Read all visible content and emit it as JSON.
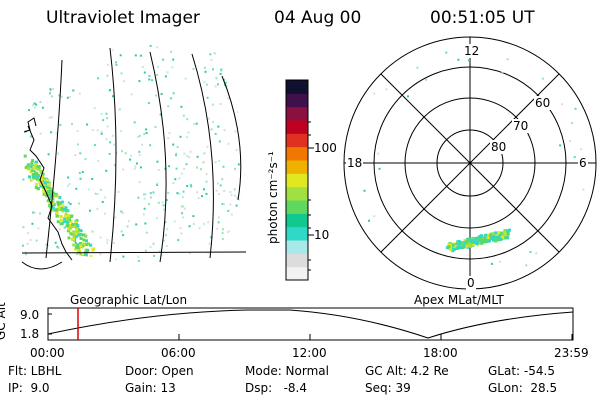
{
  "header": {
    "instrument": "Ultraviolet Imager",
    "date": "04 Aug 00",
    "time": "00:51:05 UT"
  },
  "geo_panel": {
    "label": "Geographic Lat/Lon"
  },
  "colorbar": {
    "unit_label": "photon cm⁻²s⁻¹",
    "ticks": [
      "100",
      "10"
    ],
    "colors": [
      "#f2f2f2",
      "#dcdcdc",
      "#a8e8e8",
      "#30d8c8",
      "#10c890",
      "#60d860",
      "#a0e040",
      "#e0e820",
      "#f0b000",
      "#f07800",
      "#e03020",
      "#c00020",
      "#8a1040",
      "#40104a",
      "#101030"
    ]
  },
  "polar_panel": {
    "label": "Apex MLat/MLT",
    "mlt_labels": [
      "12",
      "18",
      "6",
      "0"
    ],
    "lat_labels": [
      "60",
      "70",
      "80"
    ]
  },
  "timeline": {
    "axis_label": "GC Alt",
    "y_ticks": [
      "9.0",
      "1.8"
    ],
    "x_ticks": [
      "00:00",
      "06:00",
      "12:00",
      "18:00",
      "23:59"
    ],
    "marker_color": "#dd0000"
  },
  "info": {
    "row1": {
      "flt": "Flt: LBHL",
      "door": "Door: Open",
      "mode": "Mode: Normal",
      "gcalt": "GC Alt: 4.2 Re",
      "glat": "GLat: -54.5"
    },
    "row2": {
      "ip": "IP:  9.0",
      "gain": "Gain: 13",
      "dsp": "Dsp:   -8.4",
      "seq": "Seq: 39",
      "glon": "GLon:  28.5"
    }
  }
}
